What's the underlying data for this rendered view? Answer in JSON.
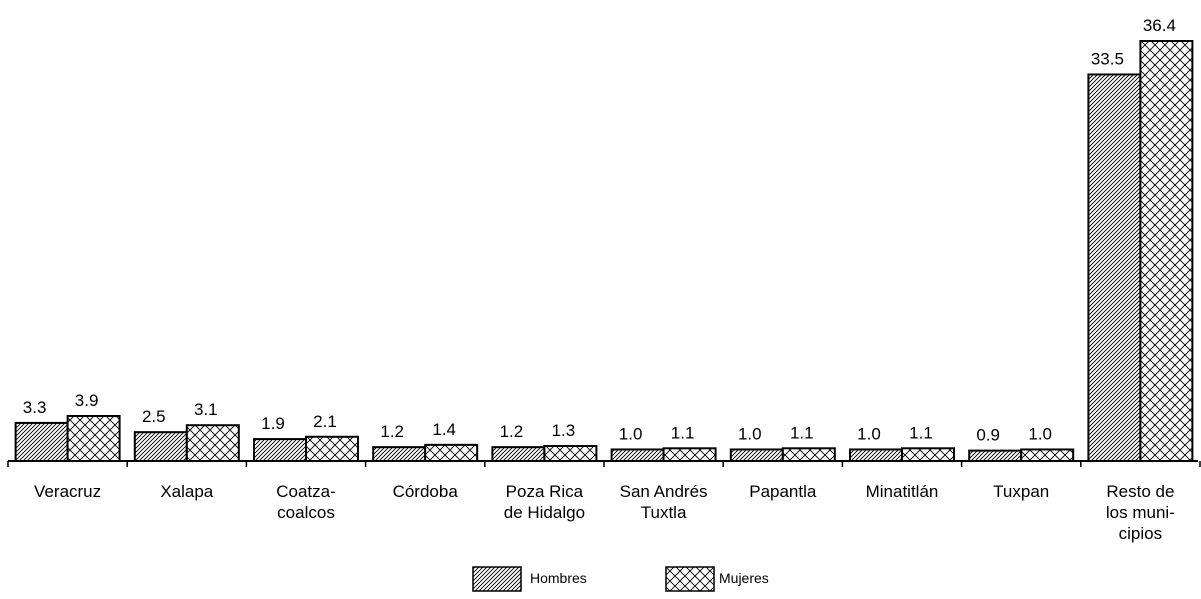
{
  "chart_data": {
    "type": "bar",
    "categories": [
      [
        "Veracruz"
      ],
      [
        "Xalapa"
      ],
      [
        "Coatza-",
        "coalcos"
      ],
      [
        "Córdoba"
      ],
      [
        "Poza Rica",
        "de Hidalgo"
      ],
      [
        "San Andrés",
        "Tuxtla"
      ],
      [
        "Papantla"
      ],
      [
        "Minatitlán"
      ],
      [
        "Tuxpan"
      ],
      [
        "Resto de",
        "los muni-",
        "cipios"
      ]
    ],
    "series": [
      {
        "name": "Hombres",
        "values": [
          3.3,
          2.5,
          1.9,
          1.2,
          1.2,
          1.0,
          1.0,
          1.0,
          0.9,
          33.5
        ],
        "labels": [
          "3.3",
          "2.5",
          "1.9",
          "1.2",
          "1.2",
          "1.0",
          "1.0",
          "1.0",
          "0.9",
          "33.5"
        ],
        "pattern": "diagonal-hatch"
      },
      {
        "name": "Mujeres",
        "values": [
          3.9,
          3.1,
          2.1,
          1.4,
          1.3,
          1.1,
          1.1,
          1.1,
          1.0,
          36.4
        ],
        "labels": [
          "3.9",
          "3.1",
          "2.1",
          "1.4",
          "1.3",
          "1.1",
          "1.1",
          "1.1",
          "1.0",
          "36.4"
        ],
        "pattern": "crosshatch"
      }
    ],
    "ylim": [
      0,
      36.4
    ],
    "legend_position": "bottom-center",
    "grid": false
  },
  "legend": {
    "hombres_label": "Hombres",
    "mujeres_label": "Mujeres"
  }
}
